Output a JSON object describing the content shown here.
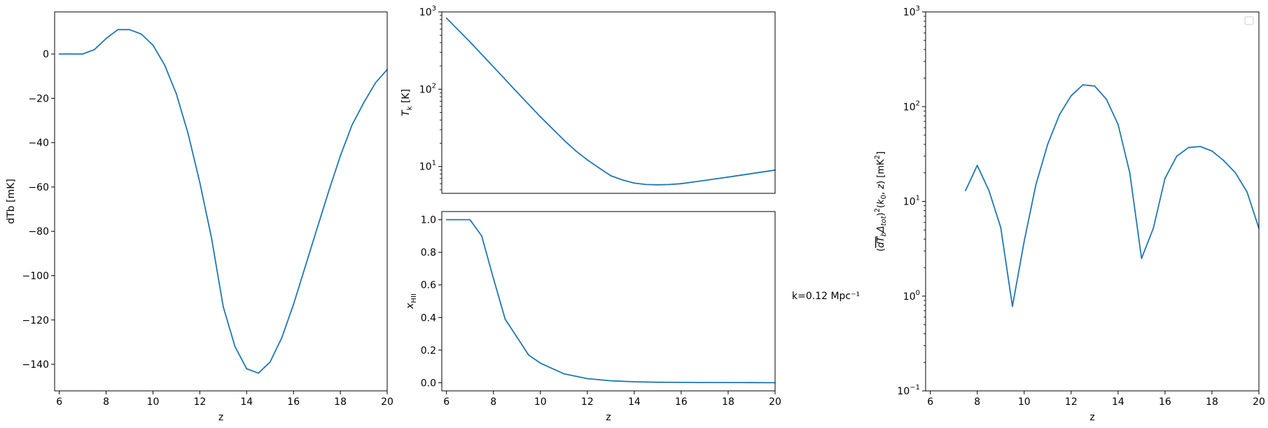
{
  "chart_data": [
    {
      "id": "dtb",
      "type": "line",
      "xlabel": "z",
      "ylabel": "dTb [mK]",
      "xlim": [
        5.8,
        20
      ],
      "ylim": [
        -152,
        19
      ],
      "xticks": [
        6,
        8,
        10,
        12,
        14,
        16,
        18,
        20
      ],
      "yticks": [
        0,
        -20,
        -40,
        -60,
        -80,
        -100,
        -120,
        -140
      ],
      "x": [
        6,
        6.5,
        7,
        7.5,
        8,
        8.5,
        9,
        9.5,
        10,
        10.5,
        11,
        11.5,
        12,
        12.5,
        13,
        13.5,
        14,
        14.5,
        15,
        15.5,
        16,
        16.5,
        17,
        17.5,
        18,
        18.5,
        19,
        19.5,
        20
      ],
      "y": [
        0,
        0,
        0,
        2,
        7,
        11,
        11,
        9,
        4,
        -5,
        -18,
        -36,
        -58,
        -83,
        -114,
        -132,
        -142,
        -144,
        -139,
        -128,
        -113,
        -96,
        -79,
        -62,
        -46,
        -32,
        -22,
        -13,
        -7
      ],
      "grid": false
    },
    {
      "id": "tk",
      "type": "line",
      "xlabel": "",
      "ylabel": "T_k [K]",
      "ylabel_main": "T",
      "ylabel_sub": "k",
      "ylabel_rest": " [K]",
      "yscale": "log",
      "xlim": [
        5.8,
        20
      ],
      "ylim": [
        4.5,
        1000
      ],
      "yticks_major": [
        {
          "value": 10,
          "base": "10",
          "exp": "1"
        },
        {
          "value": 100,
          "base": "10",
          "exp": "2"
        },
        {
          "value": 1000,
          "base": "10",
          "exp": "3"
        }
      ],
      "x": [
        6,
        7,
        8,
        9,
        10,
        11,
        11.5,
        12,
        12.5,
        13,
        13.5,
        14,
        14.5,
        15,
        15.5,
        16,
        17,
        18,
        19,
        20
      ],
      "y": [
        830,
        410,
        195,
        92,
        44,
        22,
        16,
        12.2,
        9.6,
        7.6,
        6.7,
        6.1,
        5.85,
        5.8,
        5.85,
        6.0,
        6.6,
        7.3,
        8.1,
        9.0
      ],
      "grid": false
    },
    {
      "id": "xhii",
      "type": "line",
      "xlabel": "z",
      "ylabel": "x_HII",
      "ylabel_main": "x",
      "ylabel_sub": "HII",
      "xlim": [
        5.8,
        20
      ],
      "ylim": [
        -0.05,
        1.05
      ],
      "xticks": [
        6,
        8,
        10,
        12,
        14,
        16,
        18,
        20
      ],
      "yticks": [
        0.0,
        0.2,
        0.4,
        0.6,
        0.8,
        1.0
      ],
      "ytick_labels": [
        "0.0",
        "0.2",
        "0.4",
        "0.6",
        "0.8",
        "1.0"
      ],
      "x": [
        6,
        6.5,
        7,
        7.5,
        8,
        8.5,
        9,
        9.5,
        10,
        11,
        12,
        13,
        14,
        15,
        16,
        17,
        18,
        19,
        20
      ],
      "y": [
        1.0,
        1.0,
        1.0,
        0.9,
        0.64,
        0.39,
        0.28,
        0.17,
        0.12,
        0.055,
        0.025,
        0.012,
        0.006,
        0.003,
        0.002,
        0.001,
        0.001,
        0.0005,
        0.0
      ],
      "grid": false
    },
    {
      "id": "ps",
      "type": "line",
      "xlabel": "z",
      "ylabel": "(dT_b Δ_tot)^2(k_0, z) [mK^2]",
      "yscale": "log",
      "xlim": [
        5.8,
        20
      ],
      "ylim": [
        0.1,
        1000
      ],
      "xticks": [
        6,
        8,
        10,
        12,
        14,
        16,
        18,
        20
      ],
      "yticks_major": [
        {
          "value": 0.1,
          "base": "10",
          "exp": "−1"
        },
        {
          "value": 1,
          "base": "10",
          "exp": "0"
        },
        {
          "value": 10,
          "base": "10",
          "exp": "1"
        },
        {
          "value": 100,
          "base": "10",
          "exp": "2"
        },
        {
          "value": 1000,
          "base": "10",
          "exp": "3"
        }
      ],
      "annotation": "k=0.12 Mpc⁻¹",
      "x": [
        7.5,
        8,
        8.5,
        9,
        9.5,
        10,
        10.5,
        11,
        11.5,
        12,
        12.5,
        13,
        13.5,
        14,
        14.5,
        15,
        15.5,
        16,
        16.5,
        17,
        17.5,
        18,
        18.5,
        19,
        19.5,
        20
      ],
      "y": [
        13,
        24,
        13,
        5.3,
        0.78,
        3.8,
        15,
        40,
        82,
        130,
        170,
        165,
        120,
        65,
        20,
        2.5,
        5.2,
        17.5,
        30,
        37,
        38,
        34,
        27,
        20,
        12.5,
        5.2
      ],
      "legend": "top-right",
      "grid": false
    }
  ],
  "colors": {
    "line": "#1f77b4",
    "axis": "#000000"
  }
}
